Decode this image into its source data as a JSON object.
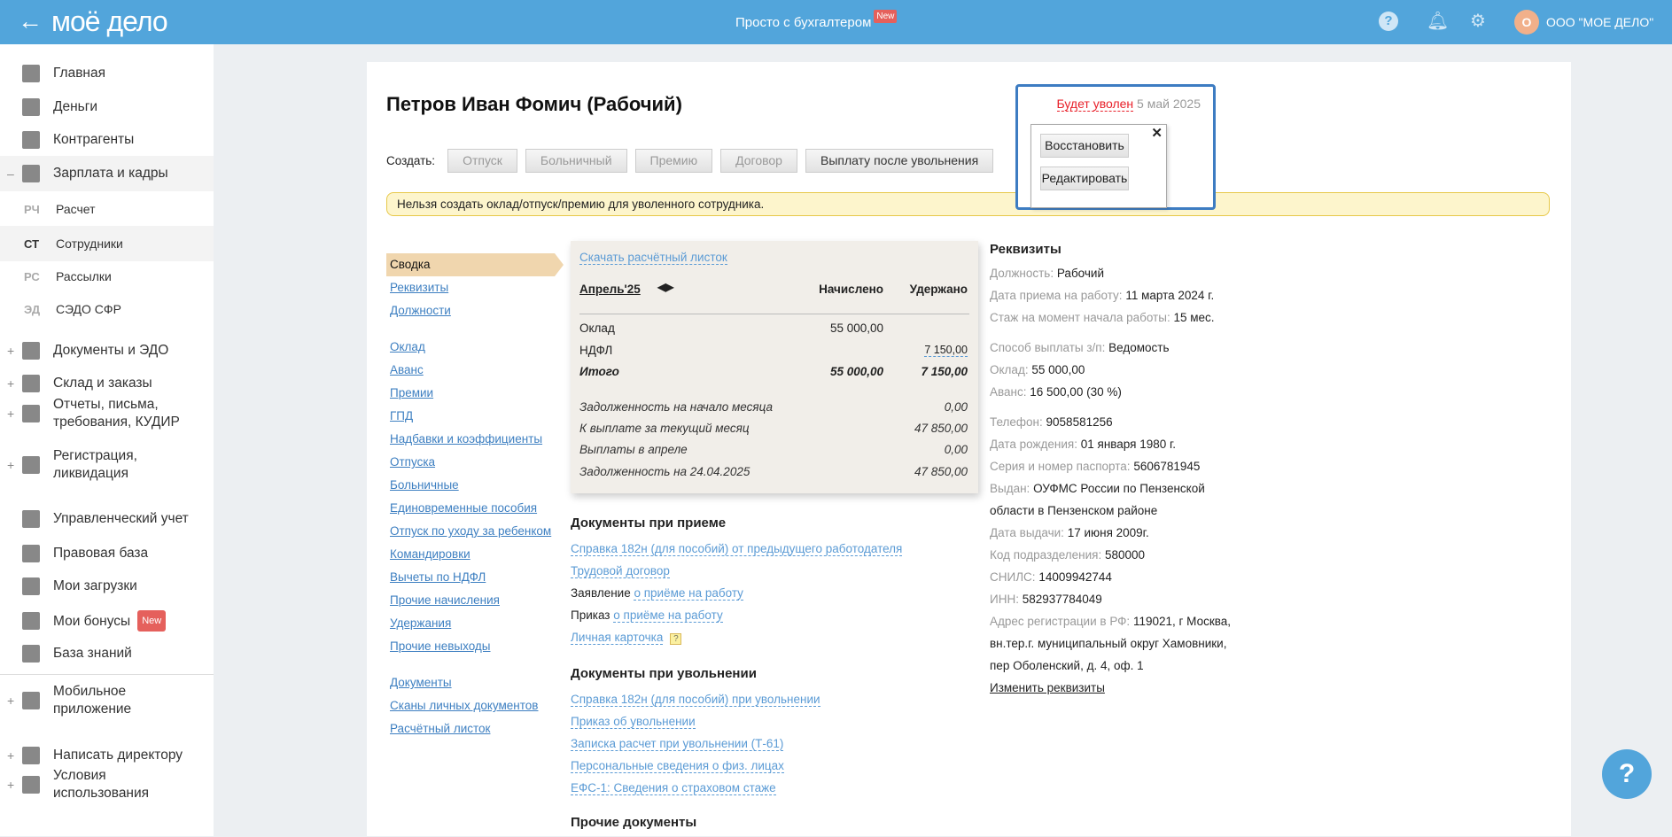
{
  "header": {
    "logo": "моё дело",
    "promo": "Просто с бухгалтером",
    "promo_badge": "New",
    "org": "ООО \"МОЕ ДЕЛО\"",
    "avatar": "О",
    "accent": "#52a5db"
  },
  "sidebar": {
    "items": [
      {
        "label": "Главная",
        "icon": "home-icon"
      },
      {
        "label": "Деньги",
        "icon": "money-icon"
      },
      {
        "label": "Контрагенты",
        "icon": "contractors-icon"
      },
      {
        "label": "Зарплата и кадры",
        "icon": "wallet-icon",
        "expander": "–"
      },
      {
        "abbr": "РЧ",
        "label": "Расчет"
      },
      {
        "abbr": "СТ",
        "label": "Сотрудники"
      },
      {
        "abbr": "РС",
        "label": "Рассылки"
      },
      {
        "abbr": "ЭД",
        "label": "СЭДО СФР"
      },
      {
        "label": "Документы и ЭДО",
        "icon": "folder-icon",
        "expander": "+"
      },
      {
        "label": "Склад и заказы",
        "icon": "warehouse-icon",
        "expander": "+"
      },
      {
        "label": "Отчеты, письма, требования, КУДИР",
        "icon": "reports-icon",
        "expander": "+"
      },
      {
        "label": "Регистрация, ликвидация",
        "icon": "registration-icon",
        "expander": "+"
      },
      {
        "label": "Управленческий учет",
        "icon": "ruble-icon"
      },
      {
        "label": "Правовая база",
        "icon": "briefcase-icon"
      },
      {
        "label": "Мои загрузки",
        "icon": "folder-icon"
      },
      {
        "label": "Мои бонусы",
        "icon": "gift-icon",
        "badge": "New"
      },
      {
        "label": "База знаний",
        "icon": "graduation-icon"
      },
      {
        "label": "Мобильное приложение",
        "icon": "phone-icon",
        "expander": "+"
      },
      {
        "label": "Написать директору",
        "icon": "chat-icon",
        "expander": "+"
      },
      {
        "label": "Условия использования",
        "icon": "dots-icon",
        "expander": "+"
      }
    ]
  },
  "employee": {
    "name": "Петров Иван Фомич (Рабочий)",
    "fire_status": "Будет уволен",
    "fire_date": "5 май 2025",
    "restore": "Восстановить",
    "edit": "Редактировать",
    "close": "✕"
  },
  "create": {
    "label": "Создать:",
    "buttons": [
      "Отпуск",
      "Больничный",
      "Премию",
      "Договор",
      "Выплату после увольнения"
    ]
  },
  "notice": "Нельзя создать оклад/отпуск/премию для уволенного сотрудника.",
  "nav": {
    "group1": [
      "Сводка",
      "Реквизиты",
      "Должности"
    ],
    "group2": [
      "Оклад",
      "Аванс",
      "Премии",
      "ГПД",
      "Надбавки и коэффициенты",
      "Отпуска",
      "Больничные",
      "Единовременные пособия",
      "Отпуск по уходу за ребенком",
      "Командировки",
      "Вычеты по НДФЛ",
      "Прочие начисления",
      "Удержания",
      "Прочие невыходы"
    ],
    "group3": [
      "Документы",
      "Сканы личных документов",
      "Расчётный листок"
    ]
  },
  "summary": {
    "download": "Скачать расчётный листок",
    "month": "Апрель'25",
    "col_accrued": "Начислено",
    "col_withheld": "Удержано",
    "rows": [
      {
        "label": "Оклад",
        "accrued": "55 000,00",
        "withheld": ""
      },
      {
        "label": "НДФЛ",
        "accrued": "",
        "withheld": "7 150,00"
      },
      {
        "label": "Итого",
        "accrued": "55 000,00",
        "withheld": "7 150,00"
      }
    ],
    "totals": [
      {
        "label": "Задолженность на начало месяца",
        "value": "0,00"
      },
      {
        "label": "К выплате за текущий месяц",
        "value": "47 850,00"
      },
      {
        "label": "Выплаты в апреле",
        "value": "0,00"
      },
      {
        "label": "Задолженность на 24.04.2025",
        "value": "47 850,00"
      }
    ]
  },
  "docs_hire": {
    "title": "Документы при приеме",
    "items": [
      {
        "prefix": "",
        "link": "Справка 182н (для пособий) от предыдущего работодателя"
      },
      {
        "prefix": "",
        "link": "Трудовой договор"
      },
      {
        "prefix": "Заявление ",
        "link": "о приёме на работу"
      },
      {
        "prefix": "Приказ ",
        "link": "о приёме на работу"
      },
      {
        "prefix": "",
        "link": "Личная карточка",
        "help": "?"
      }
    ]
  },
  "docs_fire": {
    "title": "Документы при увольнении",
    "items": [
      "Справка 182н (для пособий) при увольнении",
      "Приказ об увольнении",
      "Записка расчет при увольнении (Т-61)",
      "Персональные сведения о физ. лицах",
      "ЕФС-1: Сведения о страховом стаже"
    ]
  },
  "docs_other": {
    "title": "Прочие документы"
  },
  "requisites": {
    "title": "Реквизиты",
    "groups": [
      [
        {
          "k": "Должность:",
          "v": "Рабочий"
        },
        {
          "k": "Дата приема на работу:",
          "v": "11 марта 2024 г."
        },
        {
          "k": "Стаж на момент начала работы:",
          "v": "15 мес."
        }
      ],
      [
        {
          "k": "Способ выплаты з/п:",
          "v": "Ведомость"
        },
        {
          "k": "Оклад:",
          "v": "55 000,00"
        },
        {
          "k": "Аванс:",
          "v": "16 500,00 (30 %)"
        }
      ],
      [
        {
          "k": "Телефон:",
          "v": "9058581256"
        },
        {
          "k": "Дата рождения:",
          "v": "01 января 1980 г."
        },
        {
          "k": "Серия и номер паспорта:",
          "v": "5606781945"
        },
        {
          "k": "Выдан:",
          "v": "ОУФМС России по Пензенской"
        },
        {
          "k": "",
          "v": "области в Пензенском районе"
        },
        {
          "k": "Дата выдачи:",
          "v": "17 июня 2009г."
        },
        {
          "k": "Код подразделения:",
          "v": "580000"
        },
        {
          "k": "СНИЛС:",
          "v": "14009942744"
        },
        {
          "k": "ИНН:",
          "v": "582937784049"
        },
        {
          "k": "Адрес регистрации в РФ:",
          "v": "119021, г Москва,"
        },
        {
          "k": "",
          "v": "вн.тер.г. муниципальный округ Хамовники,"
        },
        {
          "k": "",
          "v": "пер Оболенский, д. 4, оф. 1"
        }
      ]
    ],
    "change": "Изменить реквизиты"
  },
  "help_button": "?"
}
